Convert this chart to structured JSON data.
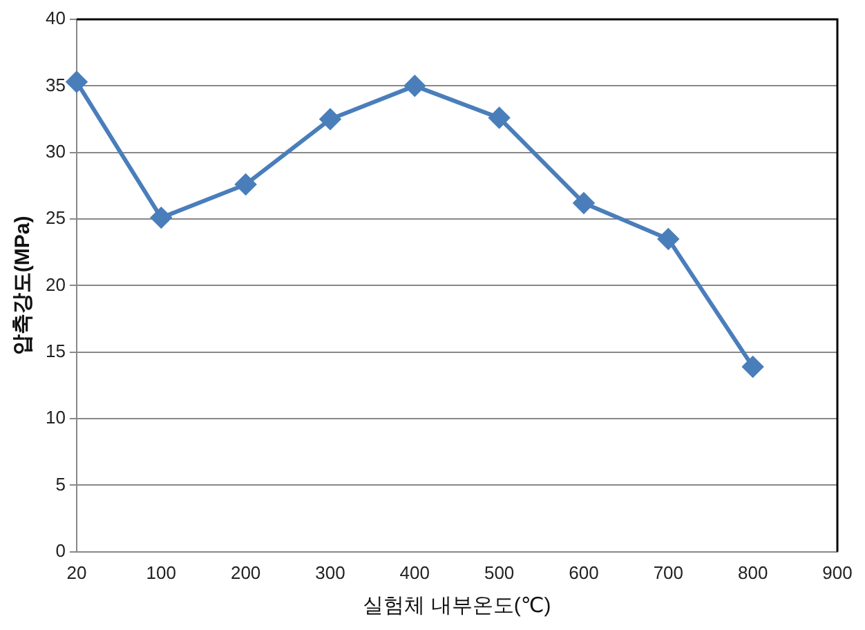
{
  "chart_data": {
    "type": "line",
    "xlabel": "실험체 내부온도(℃)",
    "ylabel": "압축강도(MPa)",
    "categories": [
      "20",
      "100",
      "200",
      "300",
      "400",
      "500",
      "600",
      "700",
      "800",
      "900"
    ],
    "series": [
      {
        "color": "#4a7ebb",
        "values": [
          35.3,
          25.1,
          27.6,
          32.5,
          35,
          32.6,
          26.2,
          23.5,
          13.9,
          null
        ]
      }
    ],
    "ylim": [
      0,
      40
    ],
    "yticks": [
      0,
      5,
      10,
      15,
      20,
      25,
      30,
      35,
      40
    ],
    "grid": "y",
    "legend": false,
    "marker": "diamond",
    "line_style": "solid"
  }
}
